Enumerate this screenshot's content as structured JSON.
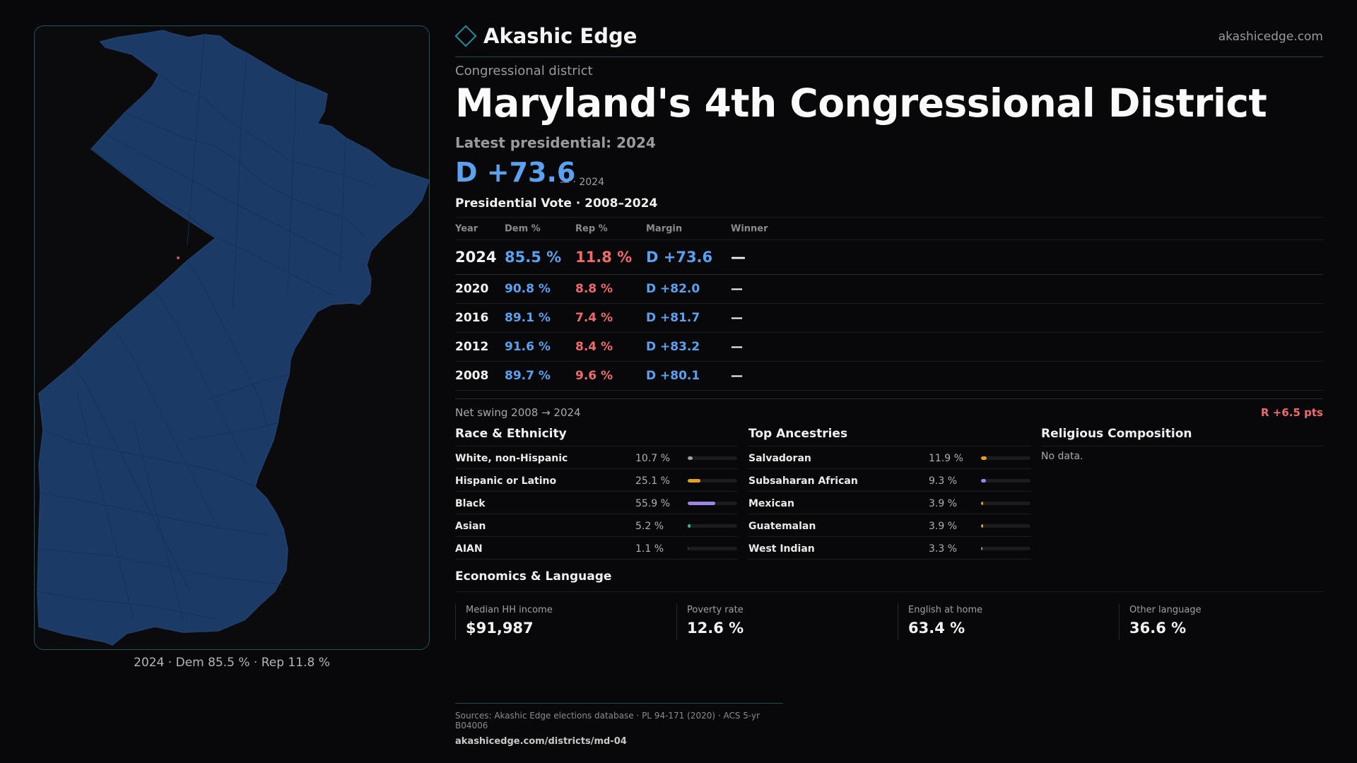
{
  "brand": {
    "name": "Akashic Edge",
    "site": "akashicedge.com"
  },
  "page": {
    "kicker": "Congressional district",
    "title": "Maryland's 4th Congressional District",
    "latest_label": "Latest presidential: 2024",
    "big_margin": "D +73.6",
    "big_margin_sub": "— · 2024",
    "vote_heading": "Presidential Vote · 2008–2024"
  },
  "map": {
    "caption": "2024 · Dem 85.5 % · Rep 11.8 %",
    "fill_color": "#1c3a66",
    "edge_color": "#1f5560"
  },
  "vote_table": {
    "headers": [
      "Year",
      "Dem %",
      "Rep %",
      "Margin",
      "Winner"
    ],
    "rows": [
      {
        "year": "2024",
        "dem": "85.5 %",
        "rep": "11.8 %",
        "margin": "D +73.6",
        "winner": "—"
      },
      {
        "year": "2020",
        "dem": "90.8 %",
        "rep": "8.8 %",
        "margin": "D +82.0",
        "winner": "—"
      },
      {
        "year": "2016",
        "dem": "89.1 %",
        "rep": "7.4 %",
        "margin": "D +81.7",
        "winner": "—"
      },
      {
        "year": "2012",
        "dem": "91.6 %",
        "rep": "8.4 %",
        "margin": "D +83.2",
        "winner": "—"
      },
      {
        "year": "2008",
        "dem": "89.7 %",
        "rep": "9.6 %",
        "margin": "D +80.1",
        "winner": "—"
      }
    ]
  },
  "swing": {
    "label": "Net swing 2008 → 2024",
    "value": "R +6.5 pts"
  },
  "race": {
    "title": "Race & Ethnicity",
    "rows": [
      {
        "label": "White, non-Hispanic",
        "pct": "10.7 %",
        "value": 10.7,
        "color": "#9aa0aa"
      },
      {
        "label": "Hispanic or Latino",
        "pct": "25.1 %",
        "value": 25.1,
        "color": "#e5a01e"
      },
      {
        "label": "Black",
        "pct": "55.9 %",
        "value": 55.9,
        "color": "#9b86e6"
      },
      {
        "label": "Asian",
        "pct": "5.2 %",
        "value": 5.2,
        "color": "#2bc48a"
      },
      {
        "label": "AIAN",
        "pct": "1.1 %",
        "value": 1.1,
        "color": "#7a6a4a"
      }
    ]
  },
  "ancestry": {
    "title": "Top Ancestries",
    "rows": [
      {
        "label": "Salvadoran",
        "pct": "11.9 %",
        "value": 11.9,
        "color": "#e5a01e"
      },
      {
        "label": "Subsaharan African",
        "pct": "9.3 %",
        "value": 9.3,
        "color": "#9b86e6"
      },
      {
        "label": "Mexican",
        "pct": "3.9 %",
        "value": 3.9,
        "color": "#e5a01e"
      },
      {
        "label": "Guatemalan",
        "pct": "3.9 %",
        "value": 3.9,
        "color": "#e5a01e"
      },
      {
        "label": "West Indian",
        "pct": "3.3 %",
        "value": 3.3,
        "color": "#9b86e6"
      }
    ]
  },
  "religion": {
    "title": "Religious Composition",
    "no_data": "No data."
  },
  "economics": {
    "title": "Economics & Language",
    "cards": [
      {
        "label": "Median HH income",
        "value": "$91,987"
      },
      {
        "label": "Poverty rate",
        "value": "12.6 %"
      },
      {
        "label": "English at home",
        "value": "63.4 %"
      },
      {
        "label": "Other language",
        "value": "36.6 %"
      }
    ]
  },
  "footer": {
    "sources": "Sources: Akashic Edge elections database · PL 94-171 (2020) · ACS 5-yr B04006",
    "url": "akashicedge.com/districts/md-04"
  }
}
